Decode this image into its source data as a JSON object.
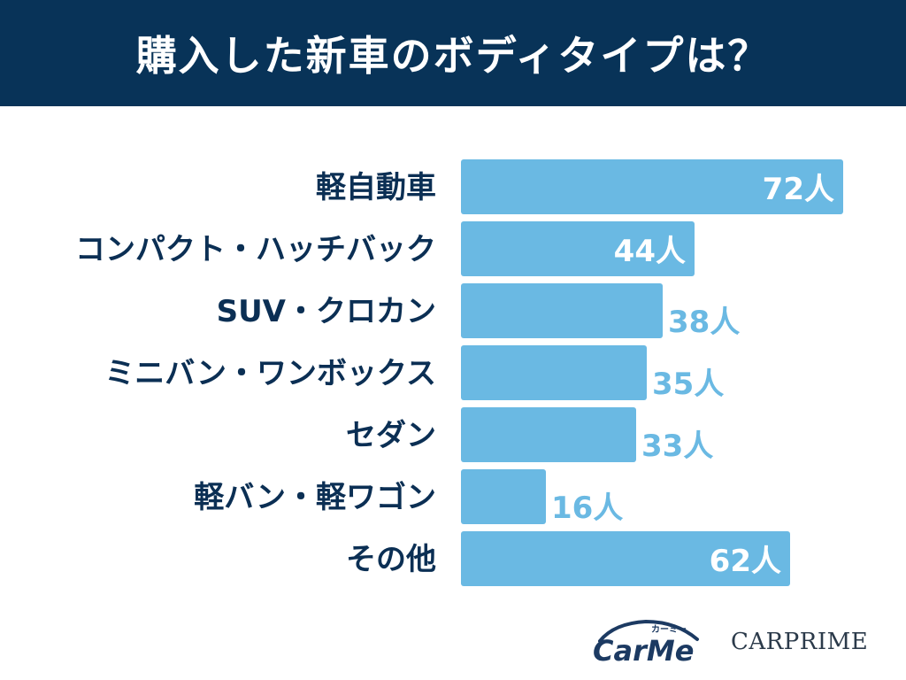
{
  "header": {
    "title": "購入した新車のボディタイプは？"
  },
  "chart_data": {
    "type": "bar",
    "orientation": "horizontal",
    "title": "購入した新車のボディタイプは？",
    "categories": [
      "軽自動車",
      "コンパクト・ハッチバック",
      "SUV・クロカン",
      "ミニバン・ワンボックス",
      "セダン",
      "軽バン・軽ワゴン",
      "その他"
    ],
    "values": [
      72,
      44,
      38,
      35,
      33,
      16,
      62
    ],
    "unit": "人",
    "value_labels": [
      "72人",
      "44人",
      "38人",
      "35人",
      "33人",
      "16人",
      "62人"
    ],
    "grid": false,
    "legend": "none",
    "colors": {
      "bar": "#6ab9e3",
      "label": "#0b2f54",
      "inside_text": "#ffffff",
      "outside_text": "#6ab9e3"
    }
  },
  "logos": {
    "carme_kana": "カーミー",
    "carme": "CarMe",
    "carprime": "CARPRIME"
  }
}
